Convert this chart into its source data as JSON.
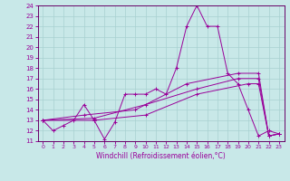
{
  "xlabel": "Windchill (Refroidissement éolien,°C)",
  "bg_color": "#c8e8e8",
  "grid_color": "#a8d0d0",
  "line_color": "#990099",
  "spine_color": "#660066",
  "xlim": [
    -0.5,
    23.5
  ],
  "ylim": [
    11,
    24
  ],
  "xticks": [
    0,
    1,
    2,
    3,
    4,
    5,
    6,
    7,
    8,
    9,
    10,
    11,
    12,
    13,
    14,
    15,
    16,
    17,
    18,
    19,
    20,
    21,
    22,
    23
  ],
  "yticks": [
    11,
    12,
    13,
    14,
    15,
    16,
    17,
    18,
    19,
    20,
    21,
    22,
    23,
    24
  ],
  "line1_x": [
    0,
    1,
    2,
    3,
    4,
    5,
    6,
    7,
    8,
    9,
    10,
    11,
    12,
    13,
    14,
    15,
    16,
    17,
    18,
    19,
    20,
    21,
    22,
    23
  ],
  "line1_y": [
    13,
    12,
    12.5,
    13,
    14.5,
    13,
    11.2,
    12.8,
    15.5,
    15.5,
    15.5,
    16,
    15.5,
    18,
    22,
    24,
    22,
    22,
    17.5,
    16.5,
    14,
    11.5,
    12,
    11.7
  ],
  "line2_x": [
    0,
    4,
    9,
    14,
    19,
    21,
    22,
    23
  ],
  "line2_y": [
    13,
    13.5,
    14,
    16.5,
    17.5,
    17.5,
    11.5,
    11.7
  ],
  "line3_x": [
    0,
    5,
    10,
    15,
    20,
    21,
    22,
    23
  ],
  "line3_y": [
    13,
    13,
    13.5,
    15.5,
    16.5,
    16.5,
    11.5,
    11.7
  ],
  "line4_x": [
    0,
    5,
    10,
    15,
    19,
    21,
    22,
    23
  ],
  "line4_y": [
    13,
    13.2,
    14.5,
    16,
    17,
    17,
    11.5,
    11.7
  ]
}
